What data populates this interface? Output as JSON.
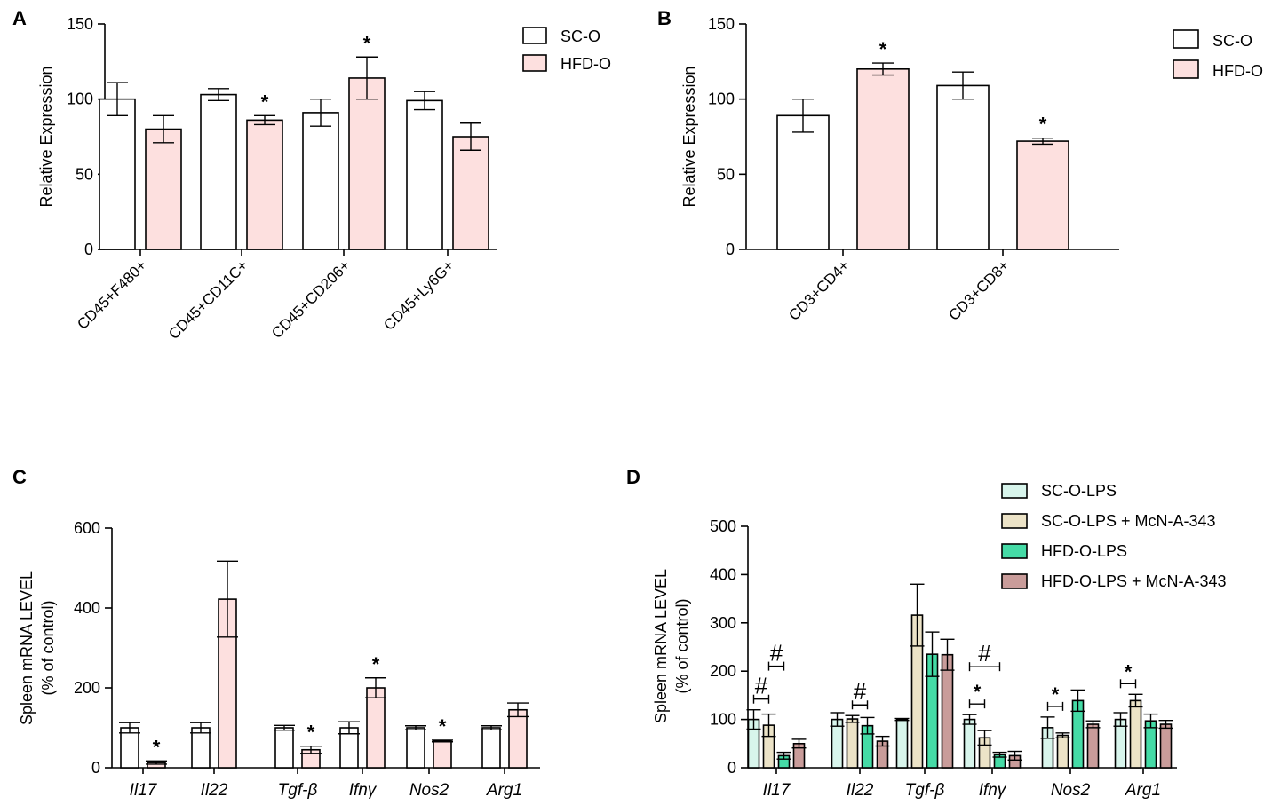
{
  "chart_data": [
    {
      "panel": "A",
      "type": "bar",
      "ylabel": "Relative Expression",
      "ylim": [
        0,
        150
      ],
      "yticks": [
        0,
        50,
        100,
        150
      ],
      "categories": [
        "CD45+F480+",
        "CD45+CD11C+",
        "CD45+CD206+",
        "CD45+Ly6G+"
      ],
      "series": [
        {
          "name": "SC-O",
          "color": "#ffffff",
          "values": [
            100,
            103,
            91,
            99
          ],
          "errors": [
            11,
            4,
            9,
            6
          ]
        },
        {
          "name": "HFD-O",
          "color": "#fde0df",
          "values": [
            80,
            86,
            114,
            75
          ],
          "errors": [
            9,
            3,
            14,
            9
          ]
        }
      ],
      "significance": [
        {
          "category": 1,
          "series": 1,
          "mark": "*"
        },
        {
          "category": 2,
          "series": 1,
          "mark": "*"
        }
      ],
      "legend": "top-right"
    },
    {
      "panel": "B",
      "type": "bar",
      "ylabel": "Relative Expression",
      "ylim": [
        0,
        150
      ],
      "yticks": [
        0,
        50,
        100,
        150
      ],
      "categories": [
        "CD3+CD4+",
        "CD3+CD8+"
      ],
      "series": [
        {
          "name": "SC-O",
          "color": "#ffffff",
          "values": [
            89,
            109
          ],
          "errors": [
            11,
            9
          ]
        },
        {
          "name": "HFD-O",
          "color": "#fde0df",
          "values": [
            120,
            72
          ],
          "errors": [
            4,
            2
          ]
        }
      ],
      "significance": [
        {
          "category": 0,
          "series": 1,
          "mark": "*"
        },
        {
          "category": 1,
          "series": 1,
          "mark": "*"
        }
      ],
      "legend": "top-right"
    },
    {
      "panel": "C",
      "type": "bar",
      "ylabel": [
        "Spleen mRNA LEVEL",
        "(% of control)"
      ],
      "ylim": [
        0,
        600
      ],
      "yticks": [
        0,
        200,
        400,
        600
      ],
      "categories": [
        "Il17",
        "Il22",
        "Tgf-β",
        "Ifnγ",
        "Nos2",
        "Arg1"
      ],
      "series": [
        {
          "name": "SC-O",
          "color": "#ffffff",
          "values": [
            100,
            100,
            100,
            100,
            100,
            100
          ],
          "errors": [
            13,
            13,
            6,
            15,
            5,
            5
          ]
        },
        {
          "name": "HFD-O",
          "color": "#fde0df",
          "values": [
            13,
            422,
            45,
            200,
            67,
            145
          ],
          "errors": [
            4,
            95,
            9,
            25,
            2,
            17
          ]
        }
      ],
      "significance": [
        {
          "category": 0,
          "series": 1,
          "mark": "*"
        },
        {
          "category": 2,
          "series": 1,
          "mark": "*"
        },
        {
          "category": 3,
          "series": 1,
          "mark": "*"
        },
        {
          "category": 4,
          "series": 1,
          "mark": "*"
        }
      ]
    },
    {
      "panel": "D",
      "type": "bar",
      "ylabel": [
        "Spleen mRNA LEVEL",
        "(% of control)"
      ],
      "ylim": [
        0,
        500
      ],
      "yticks": [
        0,
        100,
        200,
        300,
        400,
        500
      ],
      "categories": [
        "Il17",
        "Il22",
        "Tgf-β",
        "Ifnγ",
        "Nos2",
        "Arg1"
      ],
      "series": [
        {
          "name": "SC-O-LPS",
          "color": "#d8f5ec",
          "values": [
            100,
            100,
            100,
            100,
            83,
            100
          ],
          "errors": [
            20,
            14,
            2,
            10,
            22,
            14
          ]
        },
        {
          "name": "SC-O-LPS + McN-A-343",
          "color": "#ece3c7",
          "values": [
            88,
            101,
            316,
            62,
            67,
            139
          ],
          "errors": [
            23,
            7,
            64,
            15,
            5,
            13
          ]
        },
        {
          "name": "HFD-O-LPS",
          "color": "#45dba6",
          "values": [
            25,
            87,
            235,
            27,
            139,
            97
          ],
          "errors": [
            7,
            17,
            46,
            5,
            22,
            14
          ]
        },
        {
          "name": "HFD-O-LPS + McN-A-343",
          "color": "#c99c9a",
          "values": [
            50,
            55,
            234,
            25,
            90,
            90
          ],
          "errors": [
            9,
            10,
            32,
            9,
            7,
            8
          ]
        }
      ],
      "brackets": [
        {
          "category": 0,
          "from": 0,
          "to": 1,
          "mark": "#"
        },
        {
          "category": 0,
          "from": 1,
          "to": 2,
          "mark": "#"
        },
        {
          "category": 1,
          "from": 1,
          "to": 2,
          "mark": "#"
        },
        {
          "category": 3,
          "from": 0,
          "to": 1,
          "mark": "*"
        },
        {
          "category": 3,
          "from": 0,
          "to": 2,
          "mark": "#"
        },
        {
          "category": 4,
          "from": 0,
          "to": 1,
          "mark": "*"
        },
        {
          "category": 5,
          "from": 0,
          "to": 1,
          "mark": "*"
        }
      ],
      "legend": "top-right"
    }
  ]
}
